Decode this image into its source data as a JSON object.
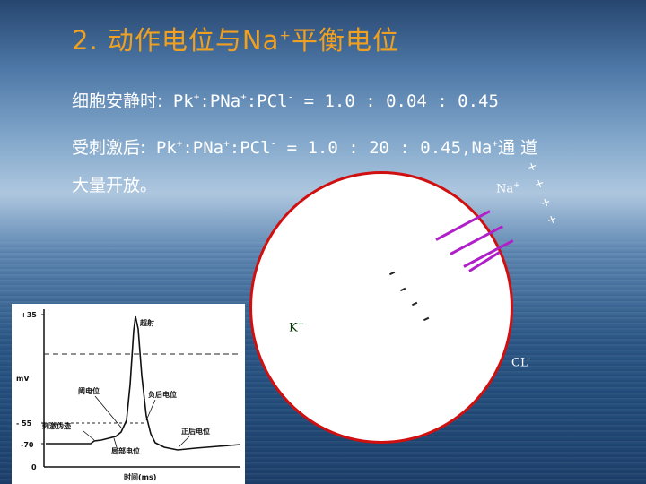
{
  "title": {
    "prefix": "2. 动作电位与Na",
    "sup": "+",
    "suffix": "平衡电位"
  },
  "rest_line": {
    "label": "细胞安静时:",
    "pk": "Pk",
    "pk_sup": "+",
    "sep1": ":PNa",
    "pna_sup": "+",
    "sep2": ":PCl",
    "pcl_sup": "-",
    "ratio": " = 1.0 :  0.04 : 0.45"
  },
  "stim_line": {
    "label": "受刺激后:",
    "pk": " Pk",
    "pk_sup": "+",
    "sep1": ":PNa",
    "pna_sup": "+",
    "sep2": ":PCl",
    "pcl_sup": "-",
    "ratio": " = 1.0 : 20 : 0.45,Na",
    "na_sup": "+",
    "tail": "通 道"
  },
  "open_line": "大量开放。",
  "cell": {
    "na_label": "Na",
    "na_sup": "+",
    "k_label": "K",
    "k_sup": "+",
    "cl_label": "CL",
    "cl_sup": "-",
    "plus": "+"
  },
  "graph": {
    "y_ticks": [
      "+35",
      "mV",
      "- 55",
      "-70",
      "0"
    ],
    "annotations": {
      "overshoot": "超射",
      "threshold": "阈电位",
      "neg_after": "负后电位",
      "stim_artifact": "刺激伪迹",
      "pos_after": "正后电位",
      "local": "局部电位"
    },
    "x_label": "时间(ms)"
  }
}
